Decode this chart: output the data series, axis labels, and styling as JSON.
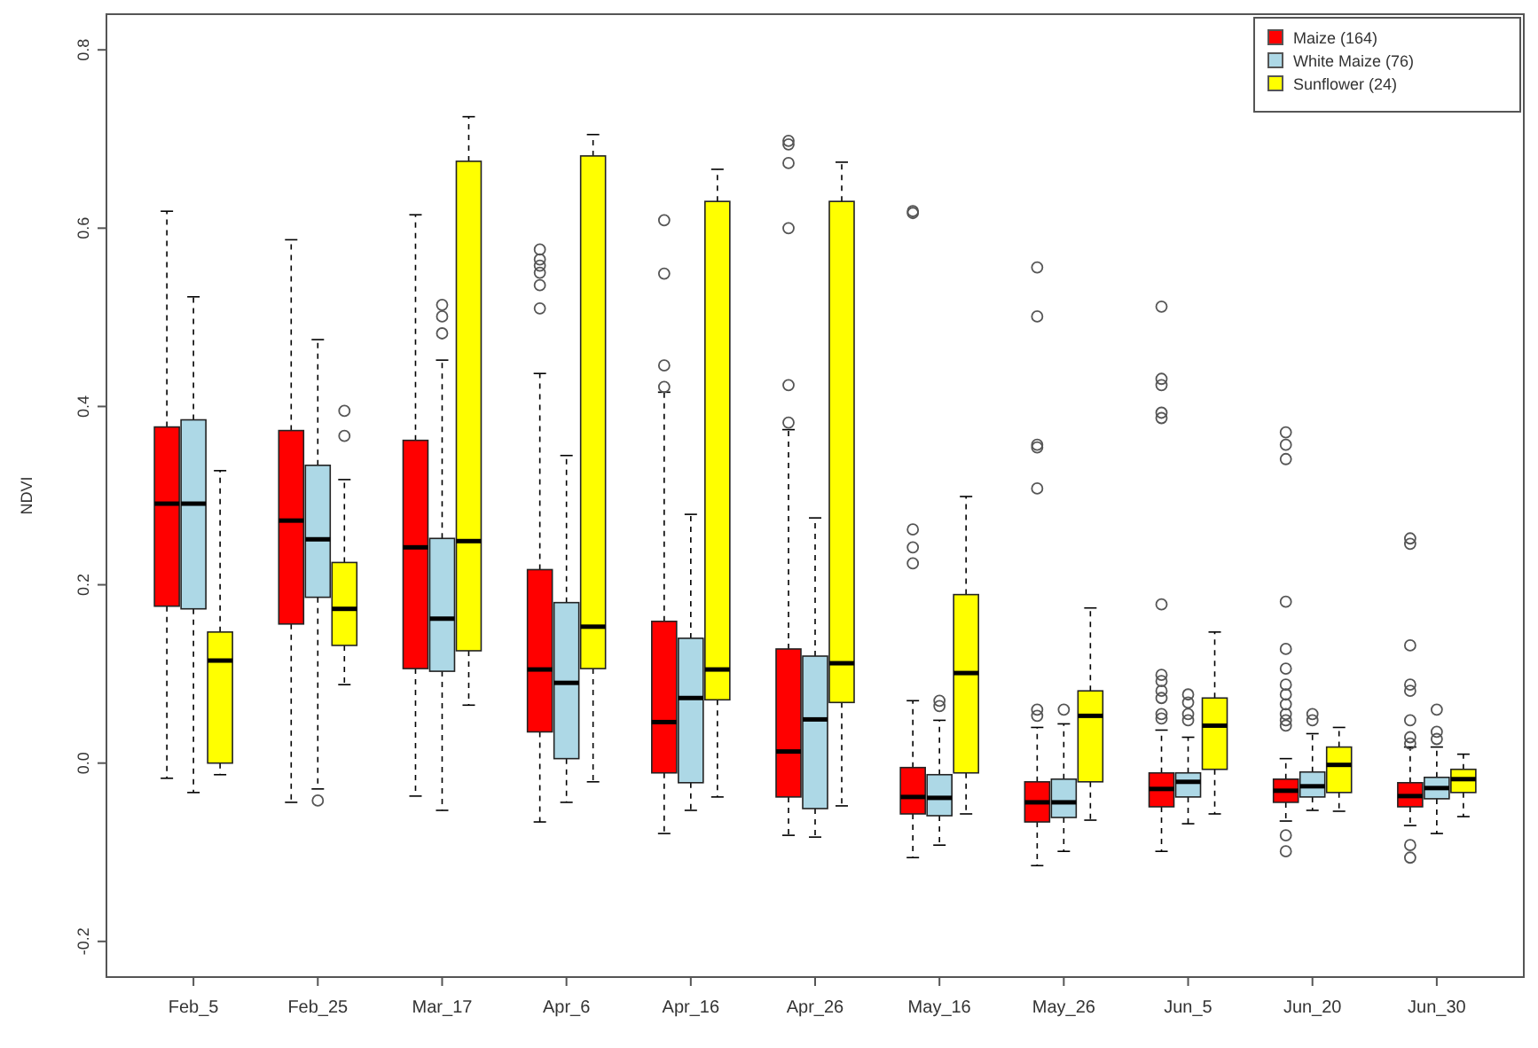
{
  "chart_data": {
    "type": "box",
    "ylabel": "NDVI",
    "categories": [
      "Feb_5",
      "Feb_25",
      "Mar_17",
      "Apr_6",
      "Apr_16",
      "Apr_26",
      "May_16",
      "May_26",
      "Jun_5",
      "Jun_20",
      "Jun_30"
    ],
    "ylim": [
      -0.24,
      0.84
    ],
    "yticks": [
      -0.2,
      {
        "value": 0,
        "label": "0.0"
      },
      0.2,
      0.4,
      0.6,
      0.8
    ],
    "legend": "top right",
    "series": [
      {
        "name": "Maize (164)",
        "color": "#ff0000",
        "boxes": [
          {
            "low": -0.017,
            "q1": 0.176,
            "median": 0.291,
            "q3": 0.377,
            "high": 0.619
          },
          {
            "low": -0.044,
            "q1": 0.156,
            "median": 0.272,
            "q3": 0.373,
            "high": 0.587
          },
          {
            "low": -0.037,
            "q1": 0.106,
            "median": 0.242,
            "q3": 0.362,
            "high": 0.615
          },
          {
            "low": -0.066,
            "q1": 0.035,
            "median": 0.105,
            "q3": 0.217,
            "high": 0.437,
            "outliers": [
              0.576,
              0.565,
              0.558,
              0.55,
              0.536,
              0.51
            ]
          },
          {
            "low": -0.079,
            "q1": -0.011,
            "median": 0.046,
            "q3": 0.159,
            "high": 0.416,
            "outliers": [
              0.609,
              0.549,
              0.446,
              0.422
            ]
          },
          {
            "low": -0.081,
            "q1": -0.038,
            "median": 0.013,
            "q3": 0.128,
            "high": 0.374,
            "outliers": [
              0.698,
              0.694,
              0.673,
              0.6,
              0.424,
              0.382
            ]
          },
          {
            "low": -0.106,
            "q1": -0.057,
            "median": -0.038,
            "q3": -0.005,
            "high": 0.07,
            "outliers": [
              0.619,
              0.617,
              0.262,
              0.242,
              0.224
            ]
          },
          {
            "low": -0.115,
            "q1": -0.066,
            "median": -0.044,
            "q3": -0.021,
            "high": 0.04,
            "outliers": [
              0.556,
              0.501,
              0.357,
              0.354,
              0.308,
              0.06,
              0.053
            ]
          },
          {
            "low": -0.099,
            "q1": -0.049,
            "median": -0.029,
            "q3": -0.011,
            "high": 0.037,
            "outliers": [
              0.512,
              0.431,
              0.424,
              0.393,
              0.387,
              0.178,
              0.099,
              0.092,
              0.081,
              0.073,
              0.055,
              0.05
            ]
          },
          {
            "low": -0.065,
            "q1": -0.044,
            "median": -0.031,
            "q3": -0.018,
            "high": 0.005,
            "outliers": [
              0.371,
              0.357,
              0.341,
              0.181,
              0.128,
              0.106,
              0.088,
              0.077,
              0.066,
              0.055,
              0.048,
              0.042,
              -0.081,
              -0.099
            ]
          },
          {
            "low": -0.07,
            "q1": -0.049,
            "median": -0.037,
            "q3": -0.022,
            "high": 0.018,
            "outliers": [
              0.252,
              0.246,
              0.132,
              0.088,
              0.081,
              0.048,
              0.029,
              0.022,
              -0.092,
              -0.106
            ]
          }
        ]
      },
      {
        "name": "White Maize (76)",
        "color": "#add8e6",
        "boxes": [
          {
            "low": -0.033,
            "q1": 0.173,
            "median": 0.291,
            "q3": 0.385,
            "high": 0.523
          },
          {
            "low": -0.029,
            "q1": 0.186,
            "median": 0.251,
            "q3": 0.334,
            "high": 0.475,
            "outliers": [
              -0.042
            ]
          },
          {
            "low": -0.053,
            "q1": 0.103,
            "median": 0.162,
            "q3": 0.252,
            "high": 0.452,
            "outliers": [
              0.514,
              0.501,
              0.482
            ]
          },
          {
            "low": -0.044,
            "q1": 0.005,
            "median": 0.09,
            "q3": 0.18,
            "high": 0.345
          },
          {
            "low": -0.053,
            "q1": -0.022,
            "median": 0.073,
            "q3": 0.14,
            "high": 0.279
          },
          {
            "low": -0.083,
            "q1": -0.051,
            "median": 0.049,
            "q3": 0.12,
            "high": 0.275
          },
          {
            "low": -0.092,
            "q1": -0.059,
            "median": -0.039,
            "q3": -0.013,
            "high": 0.048,
            "outliers": [
              0.07,
              0.064
            ]
          },
          {
            "low": -0.099,
            "q1": -0.061,
            "median": -0.044,
            "q3": -0.018,
            "high": 0.044,
            "outliers": [
              0.06
            ]
          },
          {
            "low": -0.068,
            "q1": -0.038,
            "median": -0.021,
            "q3": -0.011,
            "high": 0.029,
            "outliers": [
              0.077,
              0.068,
              0.055,
              0.048
            ]
          },
          {
            "low": -0.053,
            "q1": -0.038,
            "median": -0.026,
            "q3": -0.01,
            "high": 0.033,
            "outliers": [
              0.055,
              0.048
            ]
          },
          {
            "low": -0.079,
            "q1": -0.04,
            "median": -0.028,
            "q3": -0.016,
            "high": 0.018,
            "outliers": [
              0.06,
              0.035,
              0.027
            ]
          }
        ]
      },
      {
        "name": "Sunflower (24)",
        "color": "#ffff00",
        "boxes": [
          {
            "low": -0.013,
            "q1": 0.0,
            "median": 0.115,
            "q3": 0.147,
            "high": 0.328
          },
          {
            "low": 0.088,
            "q1": 0.132,
            "median": 0.173,
            "q3": 0.225,
            "high": 0.318,
            "outliers": [
              0.395,
              0.367
            ]
          },
          {
            "low": 0.065,
            "q1": 0.126,
            "median": 0.249,
            "q3": 0.675,
            "high": 0.725
          },
          {
            "low": -0.021,
            "q1": 0.106,
            "median": 0.153,
            "q3": 0.681,
            "high": 0.705
          },
          {
            "low": -0.038,
            "q1": 0.071,
            "median": 0.105,
            "q3": 0.63,
            "high": 0.666
          },
          {
            "low": -0.048,
            "q1": 0.068,
            "median": 0.112,
            "q3": 0.63,
            "high": 0.674
          },
          {
            "low": -0.057,
            "q1": -0.011,
            "median": 0.101,
            "q3": 0.189,
            "high": 0.299
          },
          {
            "low": -0.064,
            "q1": -0.021,
            "median": 0.053,
            "q3": 0.081,
            "high": 0.174
          },
          {
            "low": -0.057,
            "q1": -0.007,
            "median": 0.042,
            "q3": 0.073,
            "high": 0.147
          },
          {
            "low": -0.054,
            "q1": -0.033,
            "median": -0.002,
            "q3": 0.018,
            "high": 0.04
          },
          {
            "low": -0.06,
            "q1": -0.033,
            "median": -0.018,
            "q3": -0.007,
            "high": 0.01
          }
        ]
      }
    ]
  }
}
